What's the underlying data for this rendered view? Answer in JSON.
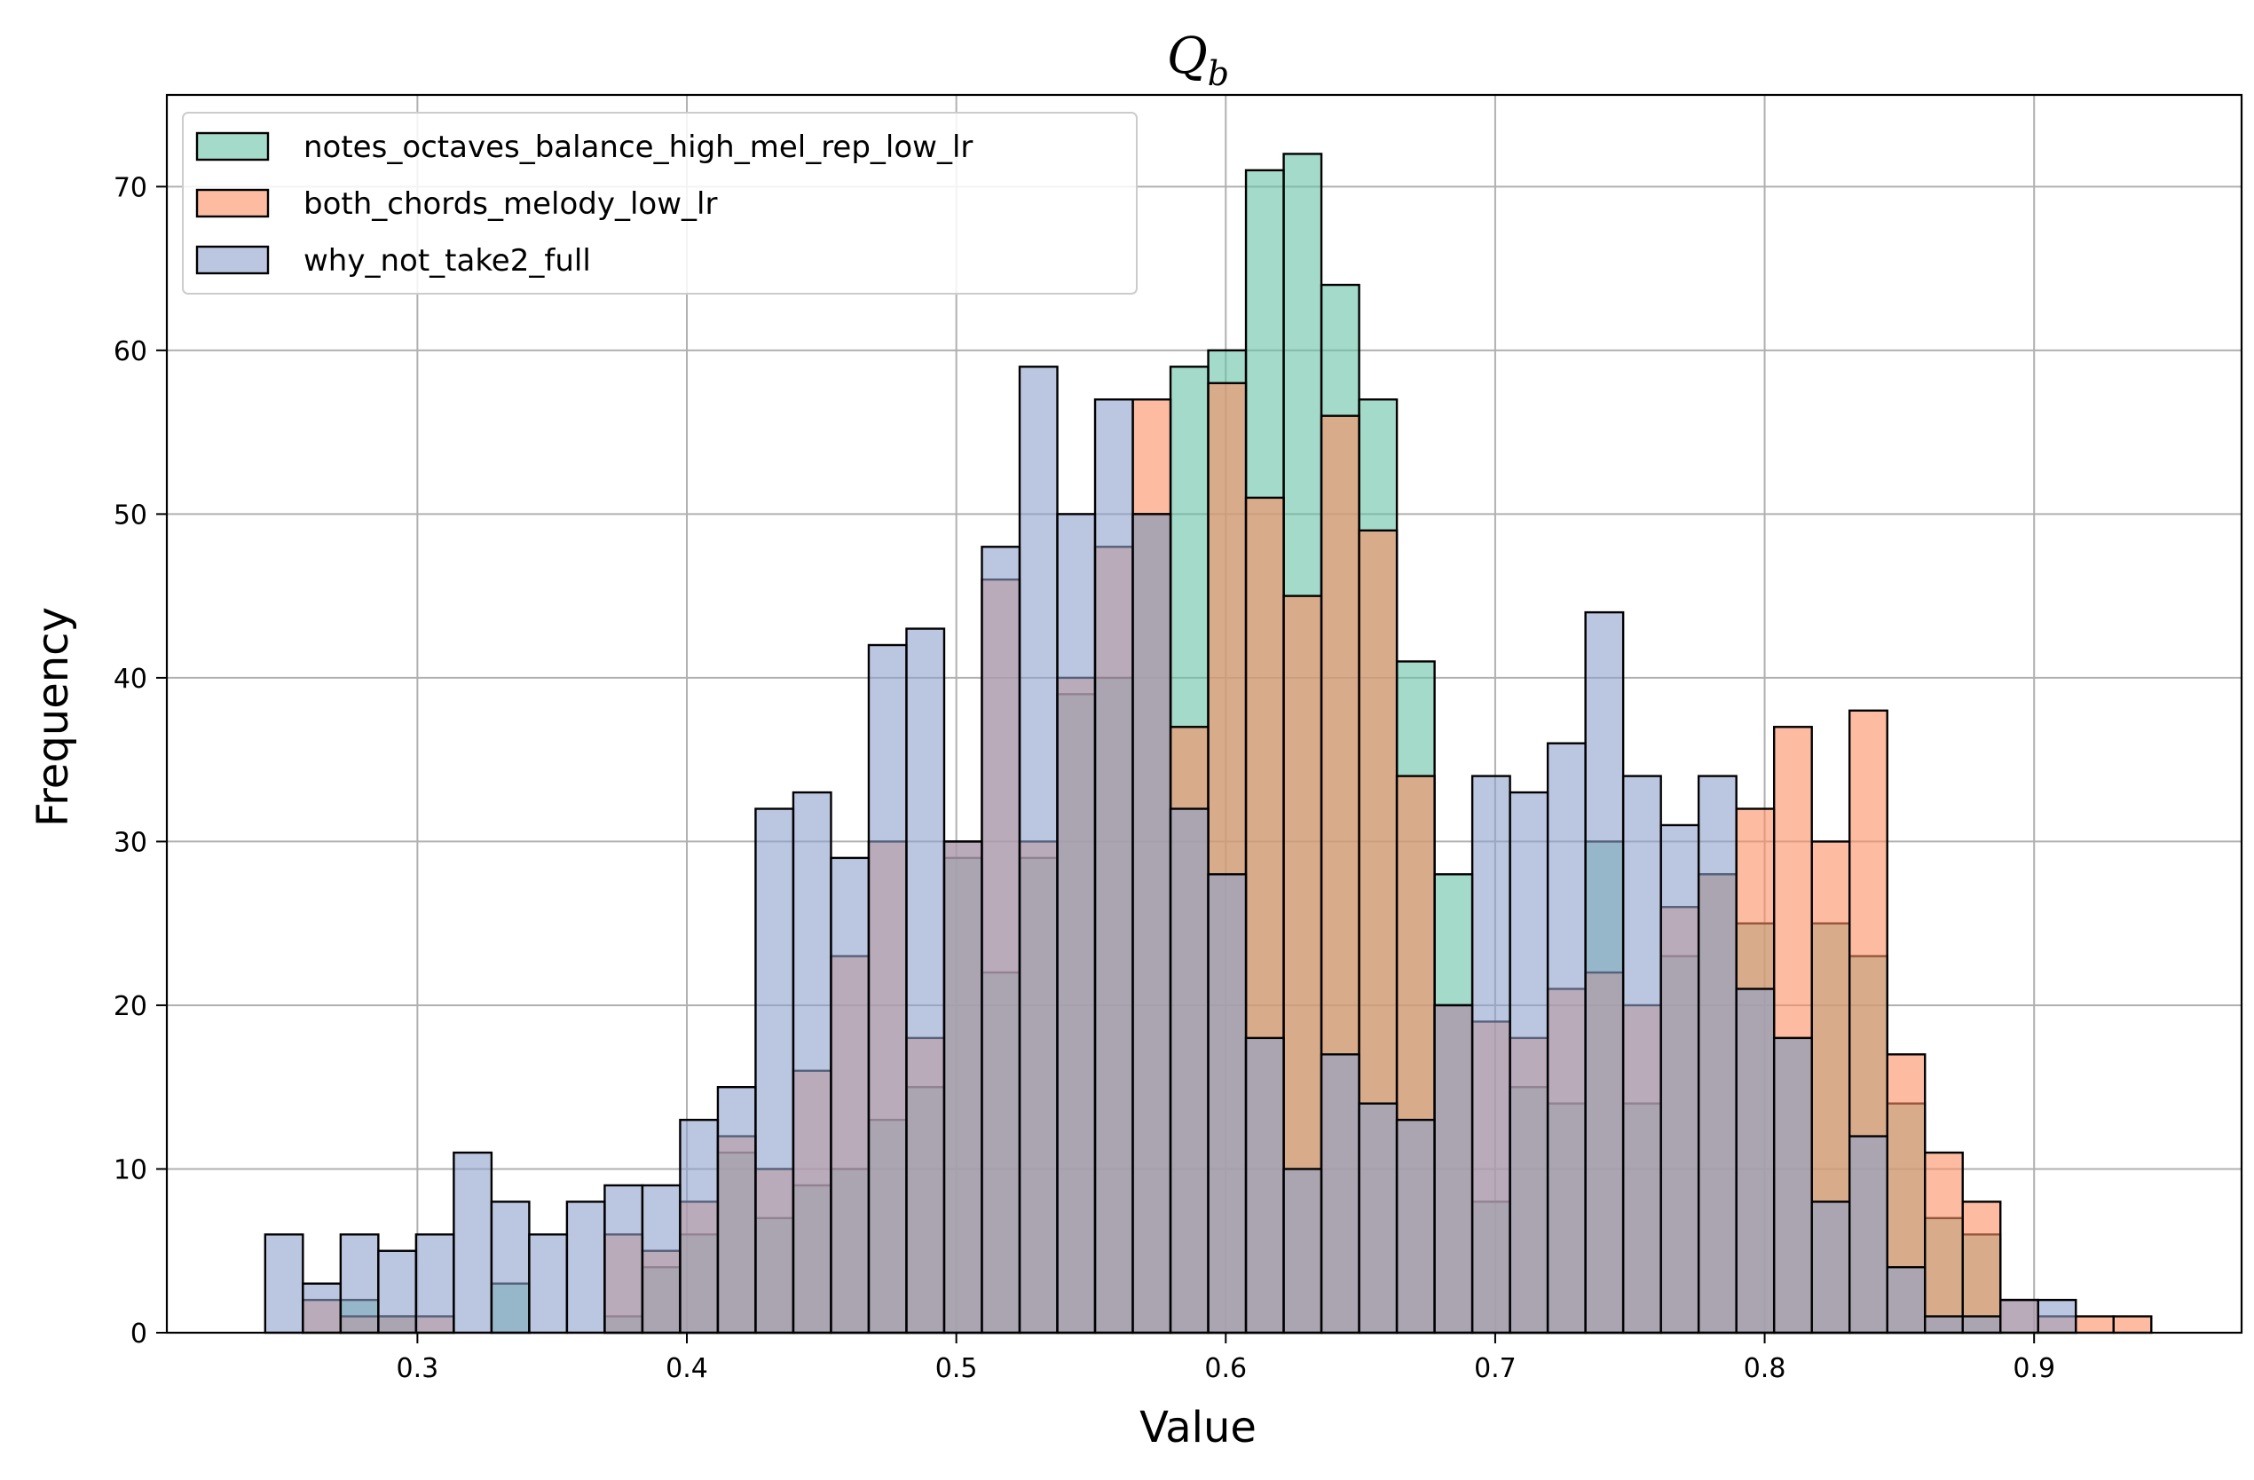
{
  "chart_data": {
    "type": "histogram",
    "title": "Q",
    "title_subscript": "b",
    "xlabel": "Value",
    "ylabel": "Frequency",
    "xlim": [
      0.207,
      0.977
    ],
    "ylim": [
      0,
      75.6
    ],
    "xticks": [
      0.3,
      0.4,
      0.5,
      0.6,
      0.7,
      0.8,
      0.9
    ],
    "yticks": [
      0,
      10,
      20,
      30,
      40,
      50,
      60,
      70
    ],
    "grid": true,
    "legend_position": "top-left",
    "bin_start": 0.2435,
    "bin_width": 0.014,
    "series": [
      {
        "name": "notes_octaves_balance_high_mel_rep_low_lr",
        "color": "#66c2a5",
        "values": [
          0,
          0,
          2,
          1,
          0,
          0,
          3,
          0,
          0,
          1,
          4,
          6,
          11,
          7,
          9,
          10,
          13,
          15,
          29,
          22,
          29,
          39,
          40,
          50,
          59,
          60,
          71,
          72,
          64,
          57,
          41,
          28,
          8,
          15,
          14,
          30,
          14,
          23,
          28,
          25,
          18,
          25,
          23,
          14,
          7,
          6,
          0,
          0,
          0,
          0,
          0,
          0
        ]
      },
      {
        "name": "both_chords_melody_low_lr",
        "color": "#fc8d62",
        "values": [
          0,
          2,
          1,
          1,
          1,
          0,
          0,
          0,
          0,
          6,
          5,
          8,
          12,
          10,
          16,
          23,
          30,
          18,
          30,
          46,
          30,
          40,
          48,
          57,
          37,
          58,
          51,
          45,
          56,
          49,
          34,
          20,
          19,
          18,
          21,
          22,
          20,
          26,
          28,
          32,
          37,
          30,
          38,
          17,
          11,
          8,
          2,
          1,
          1,
          1,
          0,
          0
        ]
      },
      {
        "name": "why_not_take2_full",
        "color": "#8da0cb",
        "values": [
          6,
          3,
          6,
          5,
          6,
          11,
          8,
          6,
          8,
          9,
          9,
          13,
          15,
          32,
          33,
          29,
          42,
          43,
          30,
          48,
          59,
          50,
          57,
          50,
          32,
          28,
          18,
          10,
          17,
          14,
          13,
          20,
          34,
          33,
          36,
          44,
          34,
          31,
          34,
          21,
          18,
          8,
          12,
          4,
          1,
          1,
          2,
          2,
          0,
          0,
          0,
          0
        ]
      }
    ]
  }
}
